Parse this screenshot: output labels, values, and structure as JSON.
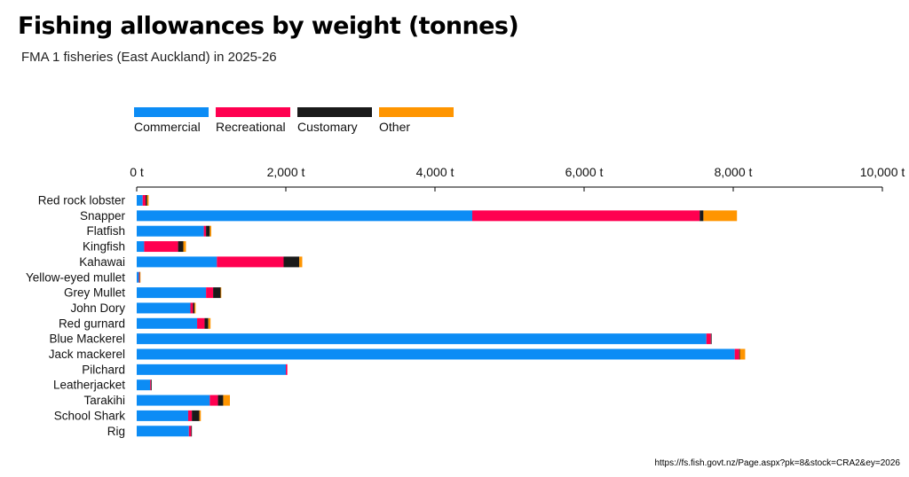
{
  "chart_data": {
    "type": "bar",
    "orientation": "horizontal",
    "stacked": true,
    "title": "Fishing allowances by weight (tonnes)",
    "subtitle": "FMA 1 fisheries (East Auckland) in 2025-26",
    "source": "https://fs.fish.govt.nz/Page.aspx?pk=8&stock=CRA2&ey=2026",
    "xlabel": "",
    "ylabel": "",
    "xlim": [
      0,
      10000
    ],
    "x_ticks": [
      0,
      2000,
      4000,
      6000,
      8000,
      10000
    ],
    "x_tick_labels": [
      "0 t",
      "2,000 t",
      "4,000 t",
      "6,000 t",
      "8,000 t",
      "10,000 t"
    ],
    "legend_position": "top-left",
    "grid": false,
    "categories": [
      "Red rock lobster",
      "Snapper",
      "Flatfish",
      "Kingfish",
      "Kahawai",
      "Yellow-eyed mullet",
      "Grey Mullet",
      "John Dory",
      "Red gurnard",
      "Blue Mackerel",
      "Jack mackerel",
      "Pilchard",
      "Leatherjacket",
      "Tarakihi",
      "School Shark",
      "Rig"
    ],
    "series": [
      {
        "name": "Commercial",
        "color": "#0c8cf5",
        "values": [
          80,
          4500,
          900,
          100,
          1075,
          30,
          930,
          720,
          810,
          7640,
          8020,
          2000,
          180,
          980,
          690,
          700
        ]
      },
      {
        "name": "Recreational",
        "color": "#ff0050",
        "values": [
          40,
          3050,
          30,
          455,
          895,
          8,
          95,
          35,
          100,
          60,
          60,
          20,
          10,
          110,
          50,
          30
        ]
      },
      {
        "name": "Customary",
        "color": "#1a1a1a",
        "values": [
          20,
          50,
          50,
          70,
          210,
          3,
          100,
          20,
          50,
          10,
          10,
          0,
          10,
          70,
          100,
          10
        ]
      },
      {
        "name": "Other",
        "color": "#ff9500",
        "values": [
          20,
          450,
          20,
          35,
          40,
          1,
          5,
          15,
          30,
          0,
          70,
          0,
          0,
          90,
          20,
          0
        ]
      }
    ]
  }
}
